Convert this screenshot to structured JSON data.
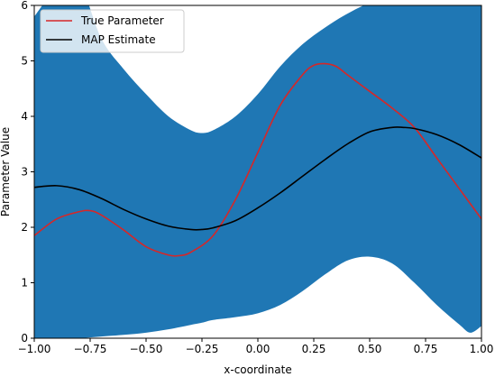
{
  "chart_data": {
    "type": "line",
    "title": "",
    "xlabel": "x-coordinate",
    "ylabel": "Parameter Value",
    "xlim": [
      -1.0,
      1.0
    ],
    "ylim": [
      0,
      6
    ],
    "grid": false,
    "legend_position": "top-left",
    "x_ticks": [
      "−1.00",
      "−0.75",
      "−0.50",
      "−0.25",
      "0.00",
      "0.25",
      "0.50",
      "0.75",
      "1.00"
    ],
    "x_tick_values": [
      -1.0,
      -0.75,
      -0.5,
      -0.25,
      0.0,
      0.25,
      0.5,
      0.75,
      1.0
    ],
    "y_ticks": [
      "0",
      "1",
      "2",
      "3",
      "4",
      "5",
      "6"
    ],
    "y_tick_values": [
      0,
      1,
      2,
      3,
      4,
      5,
      6
    ],
    "band": {
      "color": "#1f77b4",
      "x": [
        -1.0,
        -0.9,
        -0.8,
        -0.7,
        -0.6,
        -0.5,
        -0.4,
        -0.3,
        -0.25,
        -0.2,
        -0.1,
        0.0,
        0.1,
        0.2,
        0.3,
        0.4,
        0.5,
        0.6,
        0.7,
        0.8,
        0.9,
        0.95,
        1.0
      ],
      "lower": [
        0.0,
        0.0,
        0.0,
        0.03,
        0.06,
        0.1,
        0.16,
        0.24,
        0.28,
        0.33,
        0.38,
        0.45,
        0.6,
        0.85,
        1.15,
        1.4,
        1.47,
        1.35,
        1.0,
        0.6,
        0.25,
        0.1,
        0.22
      ],
      "upper": [
        5.8,
        6.3,
        6.4,
        5.4,
        4.85,
        4.4,
        4.0,
        3.75,
        3.7,
        3.75,
        4.0,
        4.4,
        4.9,
        5.3,
        5.6,
        5.85,
        6.05,
        6.2,
        6.35,
        6.5,
        6.6,
        6.6,
        6.6
      ]
    },
    "series": [
      {
        "name": "True Parameter",
        "color": "#d62728",
        "x": [
          -1.0,
          -0.9,
          -0.8,
          -0.75,
          -0.7,
          -0.6,
          -0.5,
          -0.4,
          -0.35,
          -0.3,
          -0.2,
          -0.1,
          0.0,
          0.1,
          0.2,
          0.25,
          0.3,
          0.35,
          0.4,
          0.5,
          0.6,
          0.7,
          0.8,
          0.9,
          1.0
        ],
        "values": [
          1.85,
          2.15,
          2.28,
          2.3,
          2.22,
          1.95,
          1.65,
          1.5,
          1.49,
          1.55,
          1.85,
          2.5,
          3.35,
          4.2,
          4.75,
          4.92,
          4.95,
          4.9,
          4.75,
          4.45,
          4.15,
          3.8,
          3.25,
          2.7,
          2.15
        ]
      },
      {
        "name": "MAP Estimate",
        "color": "#000000",
        "x": [
          -1.0,
          -0.9,
          -0.8,
          -0.7,
          -0.6,
          -0.5,
          -0.4,
          -0.3,
          -0.25,
          -0.2,
          -0.1,
          0.0,
          0.1,
          0.2,
          0.3,
          0.4,
          0.5,
          0.6,
          0.65,
          0.7,
          0.8,
          0.9,
          1.0
        ],
        "values": [
          2.72,
          2.75,
          2.68,
          2.52,
          2.32,
          2.15,
          2.02,
          1.96,
          1.96,
          1.99,
          2.12,
          2.35,
          2.62,
          2.92,
          3.22,
          3.5,
          3.72,
          3.8,
          3.8,
          3.78,
          3.67,
          3.49,
          3.25
        ]
      }
    ]
  }
}
